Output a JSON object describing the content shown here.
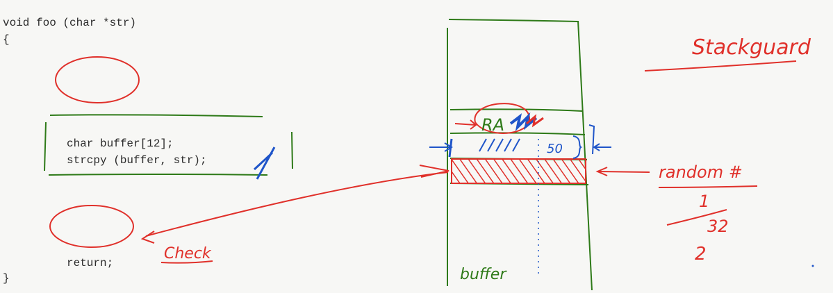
{
  "code": {
    "signature": "void foo (char *str)",
    "open_brace": "{",
    "decl_buffer": "char buffer[12];",
    "call_strcpy": "strcpy (buffer, str);",
    "ret": "return;",
    "close_brace": "}"
  },
  "annotations": {
    "title": "Stackguard",
    "check": "Check",
    "return_address": "RA",
    "buffer": "buffer",
    "random": "random #",
    "frac_numerator": "1",
    "frac_denominator": "32",
    "two": "2",
    "fifty": "50"
  },
  "colors": {
    "red_ink": "#e0302a",
    "green_ink": "#2e7a18",
    "blue_ink": "#1f55c9",
    "code_text": "#2b2b2b"
  }
}
